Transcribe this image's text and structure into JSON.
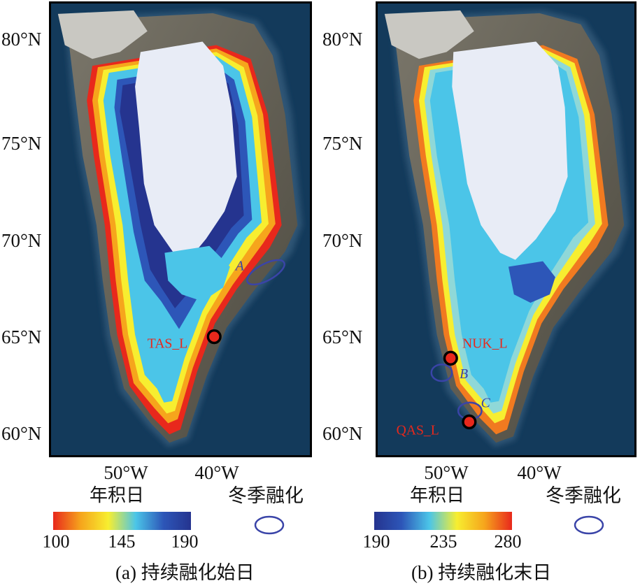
{
  "panels": [
    {
      "caption": "(a) 持续融化始日",
      "latitude_labels": [
        "80°N",
        "75°N",
        "70°N",
        "65°N",
        "60°N"
      ],
      "longitude_labels": [
        "50°W",
        "40°W"
      ],
      "legend": {
        "title": "年积日",
        "ticks": [
          "100",
          "145",
          "190"
        ],
        "color_stops": [
          "#e8281c",
          "#f6a51c",
          "#f7ee30",
          "#4bc5e8",
          "#2d56b8",
          "#25348f"
        ]
      },
      "winter_melt_label": "冬季融化",
      "stations": [
        {
          "name": "TAS_L"
        }
      ],
      "regions": [
        "A"
      ]
    },
    {
      "caption": "(b) 持续融化末日",
      "latitude_labels": [
        "80°N",
        "75°N",
        "70°N",
        "65°N",
        "60°N"
      ],
      "longitude_labels": [
        "50°W",
        "40°W"
      ],
      "legend": {
        "title": "年积日",
        "ticks": [
          "190",
          "235",
          "280"
        ],
        "color_stops": [
          "#25348f",
          "#2d56b8",
          "#4bc5e8",
          "#f7ee30",
          "#f6a51c",
          "#e8281c"
        ]
      },
      "winter_melt_label": "冬季融化",
      "stations": [
        {
          "name": "NUK_L"
        },
        {
          "name": "QAS_L"
        }
      ],
      "regions": [
        "B",
        "C"
      ]
    }
  ],
  "colors": {
    "ocean": "#133a5b",
    "ice_sheet_interior": "#e8ecf6",
    "rock": "#6e6a5e",
    "station_marker": "#e8281c",
    "station_label": "#e8281c",
    "region_ellipse": "#3a44a8"
  }
}
